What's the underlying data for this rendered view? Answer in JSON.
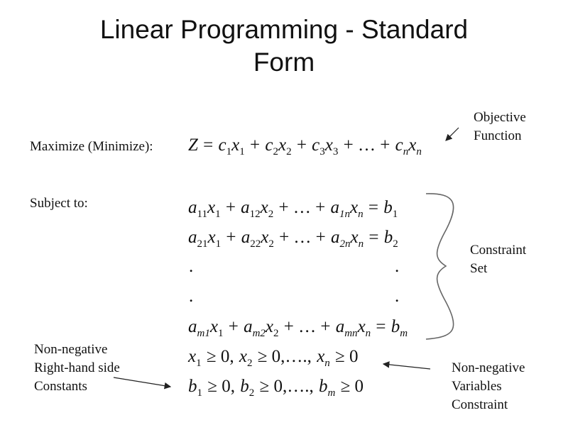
{
  "title": {
    "line1": "Linear Programming - Standard",
    "line2": "Form"
  },
  "objective": {
    "label": "Maximize (Minimize):",
    "formula": [
      [
        "Z",
        ""
      ],
      " = ",
      [
        "c",
        "1"
      ],
      [
        "x",
        "1"
      ],
      " + ",
      [
        "c",
        "2"
      ],
      [
        "x",
        "2"
      ],
      " + ",
      [
        "c",
        "3"
      ],
      [
        "x",
        "3"
      ],
      " + … + ",
      [
        "c",
        "n"
      ],
      [
        "x",
        "n"
      ]
    ],
    "annotation": [
      "Objective",
      "Function"
    ]
  },
  "constraints": {
    "label": "Subject to:",
    "rows": [
      [
        [
          "a",
          "11"
        ],
        [
          "x",
          "1"
        ],
        " + ",
        [
          "a",
          "12"
        ],
        [
          "x",
          "2"
        ],
        " + … + ",
        [
          "a",
          "1n"
        ],
        [
          "x",
          "n"
        ],
        " = ",
        [
          "b",
          "1"
        ]
      ],
      [
        [
          "a",
          "21"
        ],
        [
          "x",
          "1"
        ],
        " + ",
        [
          "a",
          "22"
        ],
        [
          "x",
          "2"
        ],
        " + … + ",
        [
          "a",
          "2n"
        ],
        [
          "x",
          "n"
        ],
        " = ",
        [
          "b",
          "2"
        ]
      ],
      [
        [
          "a",
          "m1"
        ],
        [
          "x",
          "1"
        ],
        " + ",
        [
          "a",
          "m2"
        ],
        [
          "x",
          "2"
        ],
        " + … + ",
        [
          "a",
          "mn"
        ],
        [
          "x",
          "n"
        ],
        " = ",
        [
          "b",
          "m"
        ]
      ]
    ],
    "ellipsis_dot": ".",
    "annotation": [
      "Constraint",
      "Set"
    ]
  },
  "nonneg_vars": {
    "formula": [
      [
        "x",
        "1"
      ],
      " ≥ 0, ",
      [
        "x",
        "2"
      ],
      " ≥ 0,…., ",
      [
        "x",
        "n"
      ],
      " ≥ 0"
    ],
    "annotation": [
      "Non-negative",
      "Variables",
      "Constraint"
    ]
  },
  "nonneg_rhs": {
    "formula": [
      [
        "b",
        "1"
      ],
      " ≥ 0, ",
      [
        "b",
        "2"
      ],
      " ≥ 0,…., ",
      [
        "b",
        "m"
      ],
      " ≥ 0"
    ],
    "annotation": [
      "Non-negative",
      "Right-hand side",
      "Constants"
    ]
  }
}
